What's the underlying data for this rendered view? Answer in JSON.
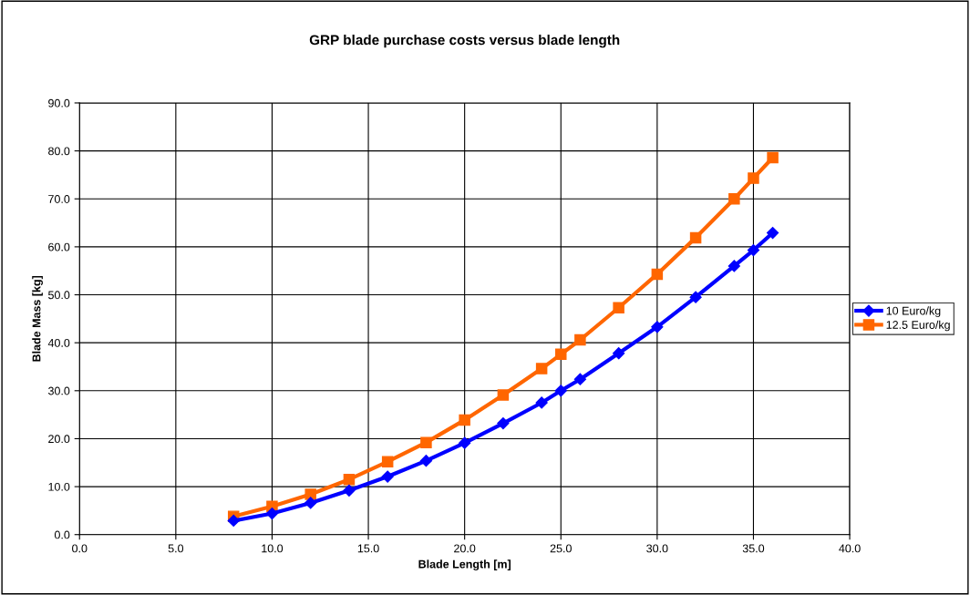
{
  "chart_data": {
    "type": "line",
    "title": "GRP blade purchase costs versus blade length",
    "xlabel": "Blade Length [m]",
    "ylabel": "Blade Mass [kg]",
    "x": [
      8,
      10,
      12,
      14,
      16,
      18,
      20,
      22,
      24,
      25,
      26,
      28,
      30,
      32,
      34,
      35,
      36
    ],
    "series": [
      {
        "name": "10 Euro/kg",
        "color": "#0000ff",
        "marker": "diamond",
        "values": [
          2.9,
          4.4,
          6.6,
          9.2,
          12.1,
          15.4,
          19.1,
          23.2,
          27.5,
          30.0,
          32.4,
          37.8,
          43.3,
          49.5,
          56.0,
          59.3,
          62.9
        ]
      },
      {
        "name": "12.5 Euro/kg",
        "color": "#ff6600",
        "marker": "square",
        "values": [
          3.8,
          5.9,
          8.4,
          11.5,
          15.2,
          19.2,
          23.9,
          29.1,
          34.6,
          37.6,
          40.6,
          47.3,
          54.3,
          61.9,
          70.0,
          74.3,
          78.6
        ]
      }
    ],
    "xlim": [
      0,
      40
    ],
    "xticks": [
      {
        "value": 0,
        "label": "0.0"
      },
      {
        "value": 5,
        "label": "5.0"
      },
      {
        "value": 10,
        "label": "10.0"
      },
      {
        "value": 15,
        "label": "15.0"
      },
      {
        "value": 20,
        "label": "20.0"
      },
      {
        "value": 25,
        "label": "25.0"
      },
      {
        "value": 30,
        "label": "30.0"
      },
      {
        "value": 35,
        "label": "35.0"
      },
      {
        "value": 40,
        "label": "40.0"
      }
    ],
    "ylim": [
      0,
      90
    ],
    "yticks": [
      {
        "value": 0,
        "label": "0.0"
      },
      {
        "value": 10,
        "label": "10.0"
      },
      {
        "value": 20,
        "label": "20.0"
      },
      {
        "value": 30,
        "label": "30.0"
      },
      {
        "value": 40,
        "label": "40.0"
      },
      {
        "value": 50,
        "label": "50.0"
      },
      {
        "value": 60,
        "label": "60.0"
      },
      {
        "value": 70,
        "label": "70.0"
      },
      {
        "value": 80,
        "label": "80.0"
      },
      {
        "value": 90,
        "label": "90.0"
      }
    ],
    "grid": true,
    "legend": "right",
    "line_style": "solid"
  }
}
